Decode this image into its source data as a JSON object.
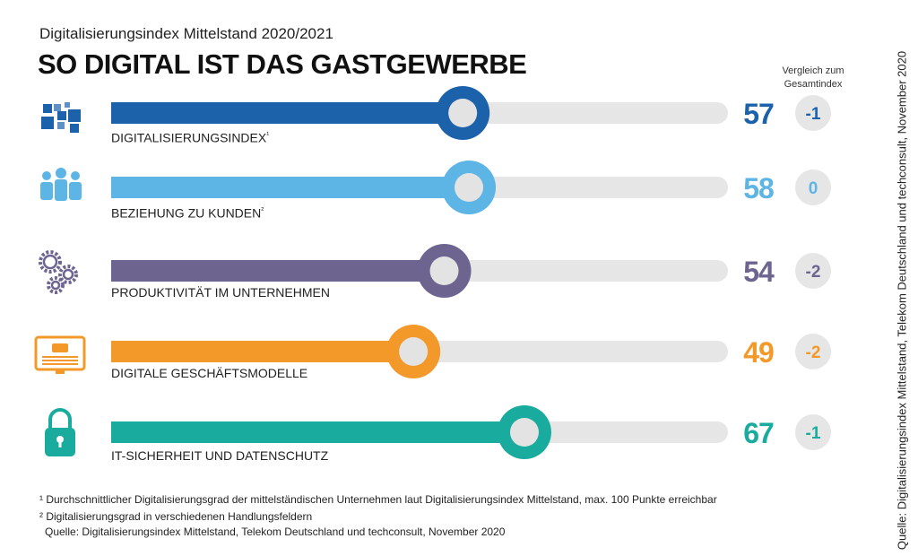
{
  "header": {
    "subtitle": "Digitalisierungsindex Mittelstand 2020/2021",
    "title": "SO DIGITAL IST DAS GASTGEWERBE"
  },
  "comparison_header": "Vergleich zum Gesamtindex",
  "chart_data": {
    "type": "bar",
    "xlim": [
      0,
      100
    ],
    "categories": [
      "DIGITALISIERUNGSINDEX",
      "BEZIEHUNG ZU KUNDEN",
      "PRODUKTIVITÄT IM UNTERNEHMEN",
      "DIGITALE GESCHÄFTSMODELLE",
      "IT-SICHERHEIT UND DATENSCHUTZ"
    ],
    "footnote_marks": [
      "¹",
      "²",
      "",
      "",
      ""
    ],
    "values": [
      57,
      58,
      54,
      49,
      67
    ],
    "comparison": [
      "-1",
      "0",
      "-2",
      "-2",
      "-1"
    ],
    "icons": [
      "blocks-icon",
      "people-icon",
      "gears-icon",
      "monitor-icon",
      "lock-icon"
    ],
    "colors": [
      "#1b62ab",
      "#5db5e5",
      "#6d6590",
      "#f3992a",
      "#19ac9e"
    ],
    "track_color": "#e6e6e6"
  },
  "footnotes": [
    "¹ Durchschnittlicher Digitalisierungsgrad der mittelständischen Unternehmen laut Digitalisierungsindex Mittelstand, max. 100 Punkte erreichbar",
    "² Digitalisierungsgrad in verschiedenen Handlungsfeldern",
    "Quelle: Digitalisierungsindex Mittelstand, Telekom Deutschland und techconsult, November 2020"
  ],
  "vertical_source": "Quelle: Digitalisierungsindex Mittelstand, Telekom Deutschland und techconsult, November 2020"
}
